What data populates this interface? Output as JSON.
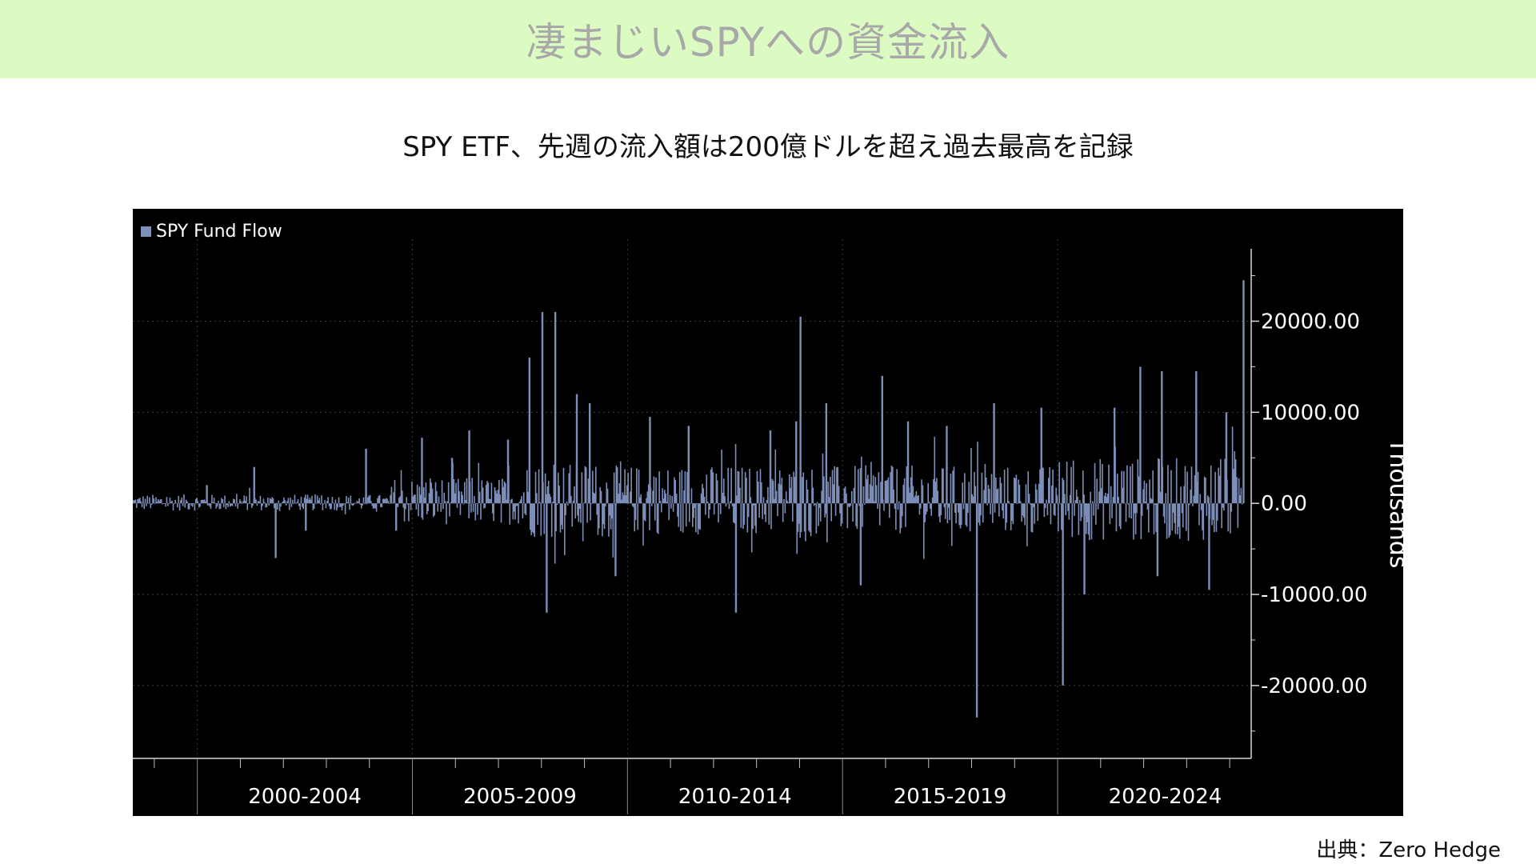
{
  "banner": {
    "title": "凄まじいSPYへの資金流入"
  },
  "chart_title": "SPY ETF、先週の流入額は200億ドルを超え過去最高を記録",
  "source": "出典：Zero Hedge",
  "chart_data": {
    "type": "bar",
    "legend": {
      "entries": [
        "SPY Fund Flow"
      ],
      "placement": "top-left"
    },
    "ylabel": "Thousands",
    "ylim": [
      -28000,
      29000
    ],
    "y_ticks": [
      -20000,
      -10000,
      0,
      10000,
      20000
    ],
    "y_tick_labels": [
      "-20000.00",
      "-10000.00",
      "0.00",
      "10000.00",
      "20000.00"
    ],
    "x_categories": [
      "2000-2004",
      "2005-2009",
      "2010-2014",
      "2015-2019",
      "2020-2024"
    ],
    "x_range": [
      1998.5,
      2024.5
    ],
    "grid": true,
    "series": [
      {
        "name": "SPY Fund Flow",
        "color": "#7d8fb8",
        "notable_weekly_points": [
          {
            "x": 2000.2,
            "y": 2000
          },
          {
            "x": 2001.3,
            "y": 4000
          },
          {
            "x": 2001.8,
            "y": -6000
          },
          {
            "x": 2002.5,
            "y": -3000
          },
          {
            "x": 2003.9,
            "y": 6000
          },
          {
            "x": 2004.6,
            "y": -3000
          },
          {
            "x": 2005.2,
            "y": 7200
          },
          {
            "x": 2005.9,
            "y": 5000
          },
          {
            "x": 2006.3,
            "y": 8000
          },
          {
            "x": 2007.2,
            "y": 7000
          },
          {
            "x": 2007.7,
            "y": 16000
          },
          {
            "x": 2008.0,
            "y": 21000
          },
          {
            "x": 2008.1,
            "y": -12000
          },
          {
            "x": 2008.3,
            "y": 21000
          },
          {
            "x": 2008.8,
            "y": 12000
          },
          {
            "x": 2009.1,
            "y": 11000
          },
          {
            "x": 2009.7,
            "y": -8000
          },
          {
            "x": 2010.5,
            "y": 9500
          },
          {
            "x": 2011.4,
            "y": 8500
          },
          {
            "x": 2012.5,
            "y": -12000
          },
          {
            "x": 2013.3,
            "y": 8000
          },
          {
            "x": 2013.9,
            "y": 9000
          },
          {
            "x": 2014.0,
            "y": 20500
          },
          {
            "x": 2014.6,
            "y": 11000
          },
          {
            "x": 2015.4,
            "y": -9000
          },
          {
            "x": 2015.9,
            "y": 14000
          },
          {
            "x": 2016.5,
            "y": 9000
          },
          {
            "x": 2017.4,
            "y": 8500
          },
          {
            "x": 2018.1,
            "y": -23500
          },
          {
            "x": 2018.5,
            "y": 11000
          },
          {
            "x": 2019.6,
            "y": 10500
          },
          {
            "x": 2020.1,
            "y": -20000
          },
          {
            "x": 2020.6,
            "y": -10000
          },
          {
            "x": 2021.3,
            "y": 10500
          },
          {
            "x": 2021.9,
            "y": 15000
          },
          {
            "x": 2022.3,
            "y": -8000
          },
          {
            "x": 2022.4,
            "y": 14500
          },
          {
            "x": 2023.2,
            "y": 14500
          },
          {
            "x": 2023.5,
            "y": -9500
          },
          {
            "x": 2023.9,
            "y": 10000
          },
          {
            "x": 2024.3,
            "y": 24500
          }
        ]
      }
    ]
  }
}
